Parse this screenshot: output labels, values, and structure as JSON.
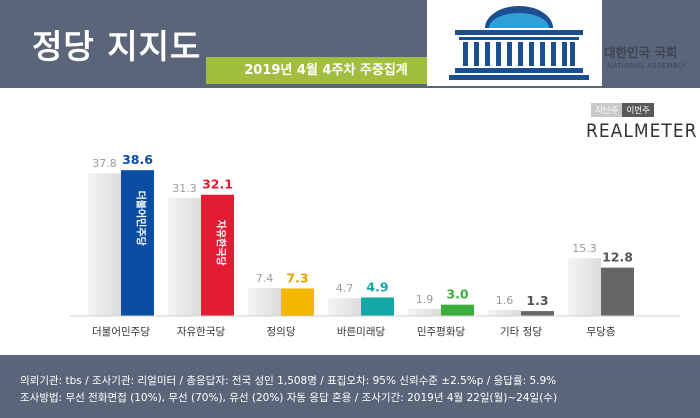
{
  "header": {
    "title": "정당 지지도",
    "week_label": "2019년 4월 4주차 주중집계",
    "assembly_name": "대한민국 국회",
    "assembly_en": "NATIONAL ASSEMBLY"
  },
  "legend": {
    "prev": "지난주",
    "curr": "이번주"
  },
  "brand": "REALMETER",
  "footer": {
    "line1": "의뢰기관: tbs / 조사기관: 리얼미터 / 총응답자: 전국 성인 1,508명 / 표집오차: 95% 신뢰수준 ±2.5%p / 응답률: 5.9%",
    "line2": "조사방법: 무선 전화면접 (10%), 무선 (70%), 유선 (20%) 자동 응답 혼용 / 조사기간: 2019년 4월 22일(월)~24일(수)"
  },
  "colors": {
    "header": "#5b6579",
    "badge": "#a1be3f",
    "prev_bar": "#dcdcdc"
  },
  "chart_data": {
    "type": "bar",
    "categories": [
      "더불어민주당",
      "자유한국당",
      "정의당",
      "바른미래당",
      "민주평화당",
      "기타 정당",
      "무당층"
    ],
    "series": [
      {
        "name": "지난주",
        "values": [
          37.8,
          31.3,
          7.4,
          4.7,
          1.9,
          1.6,
          15.3
        ]
      },
      {
        "name": "이번주",
        "values": [
          38.6,
          32.1,
          7.3,
          4.9,
          3.0,
          1.3,
          12.8
        ]
      }
    ],
    "current_colors": [
      "#0b4da2",
      "#e31b33",
      "#f5b800",
      "#13a7a7",
      "#3aae3a",
      "#666666",
      "#666666"
    ],
    "current_label_colors": [
      "#0b4da2",
      "#e31b33",
      "#e3a400",
      "#13a7a7",
      "#3aae3a",
      "#555555",
      "#555555"
    ],
    "bar_party_text": [
      "더불어민주당",
      "자유한국당",
      "",
      "",
      "",
      "",
      ""
    ],
    "ylim": [
      0,
      45
    ],
    "grid": false
  }
}
